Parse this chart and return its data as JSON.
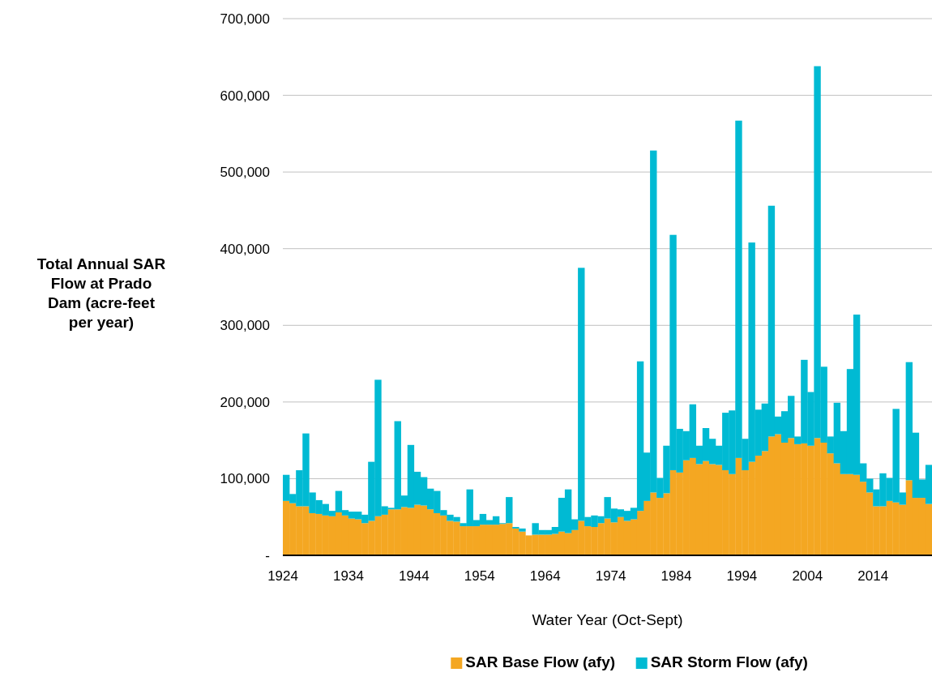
{
  "chart_data": {
    "type": "bar",
    "stacked": true,
    "xlabel": "Water Year (Oct-Sept)",
    "ylabel": "Total Annual SAR Flow at Prado Dam (acre-feet per year)",
    "categories": [
      "1924",
      null,
      null,
      null,
      null,
      null,
      null,
      null,
      null,
      null,
      "1934",
      null,
      null,
      null,
      null,
      null,
      null,
      null,
      null,
      null,
      "1944",
      null,
      null,
      null,
      null,
      null,
      null,
      null,
      null,
      null,
      "1954",
      null,
      null,
      null,
      null,
      null,
      null,
      null,
      null,
      null,
      "1964",
      null,
      null,
      null,
      null,
      null,
      null,
      null,
      null,
      null,
      "1974",
      null,
      null,
      null,
      null,
      null,
      null,
      null,
      null,
      null,
      "1984",
      null,
      null,
      null,
      null,
      null,
      null,
      null,
      null,
      null,
      "1994",
      null,
      null,
      null,
      null,
      null,
      null,
      null,
      null,
      null,
      "2004",
      null,
      null,
      null,
      null,
      null,
      null,
      null,
      null,
      null,
      "2014",
      null,
      null,
      null,
      null,
      null,
      null,
      null,
      null
    ],
    "series": [
      {
        "name": "SAR Base Flow (afy)",
        "color": "#f4a722",
        "values": [
          71000,
          68000,
          64000,
          64000,
          55000,
          54000,
          52000,
          51000,
          56000,
          52000,
          48000,
          47000,
          42000,
          45000,
          51000,
          53000,
          60000,
          60000,
          63000,
          62000,
          66000,
          65000,
          60000,
          55000,
          52000,
          45000,
          44000,
          38000,
          38000,
          38000,
          40000,
          40000,
          40000,
          41000,
          42000,
          35000,
          31000,
          26000,
          27000,
          27000,
          27000,
          28000,
          31000,
          29000,
          33000,
          45000,
          38000,
          37000,
          42000,
          48000,
          43000,
          50000,
          45000,
          47000,
          58000,
          71000,
          82000,
          75000,
          81000,
          111000,
          108000,
          124000,
          127000,
          119000,
          123000,
          119000,
          118000,
          111000,
          106000,
          127000,
          111000,
          122000,
          130000,
          136000,
          155000,
          158000,
          147000,
          153000,
          145000,
          146000,
          143000,
          153000,
          147000,
          133000,
          120000,
          106000,
          106000,
          105000,
          96000,
          82000,
          64000,
          64000,
          71000,
          69000,
          66000,
          98000,
          75000,
          75000,
          67000
        ]
      },
      {
        "name": "SAR Storm Flow (afy)",
        "color": "#00bad3",
        "values": [
          34000,
          12000,
          47000,
          95000,
          27000,
          18000,
          15000,
          7000,
          28000,
          7000,
          9000,
          10000,
          11000,
          77000,
          178000,
          11000,
          2000,
          115000,
          15000,
          82000,
          43000,
          37000,
          27000,
          29000,
          7000,
          8000,
          6000,
          4000,
          48000,
          8000,
          14000,
          6000,
          11000,
          1000,
          34000,
          2000,
          4000,
          0,
          15000,
          6000,
          6000,
          9000,
          44000,
          57000,
          14000,
          330000,
          12000,
          15000,
          9000,
          28000,
          18000,
          10000,
          13000,
          15000,
          195000,
          63000,
          446000,
          26000,
          62000,
          307000,
          57000,
          38000,
          70000,
          24000,
          43000,
          33000,
          25000,
          75000,
          83000,
          440000,
          41000,
          286000,
          60000,
          62000,
          301000,
          23000,
          41000,
          55000,
          10000,
          109000,
          70000,
          485000,
          99000,
          22000,
          79000,
          56000,
          137000,
          209000,
          24000,
          18000,
          22000,
          43000,
          30000,
          122000,
          16000,
          154000,
          85000,
          24000,
          51000
        ]
      }
    ],
    "ylim": [
      0,
      700000
    ],
    "yticks": [
      {
        "value": 0,
        "label": "-"
      },
      {
        "value": 100000,
        "label": "100,000"
      },
      {
        "value": 200000,
        "label": "200,000"
      },
      {
        "value": 300000,
        "label": "300,000"
      },
      {
        "value": 400000,
        "label": "400,000"
      },
      {
        "value": 500000,
        "label": "500,000"
      },
      {
        "value": 600000,
        "label": "600,000"
      },
      {
        "value": 700000,
        "label": "700,000"
      }
    ],
    "grid": "y",
    "legend": "bottom"
  }
}
